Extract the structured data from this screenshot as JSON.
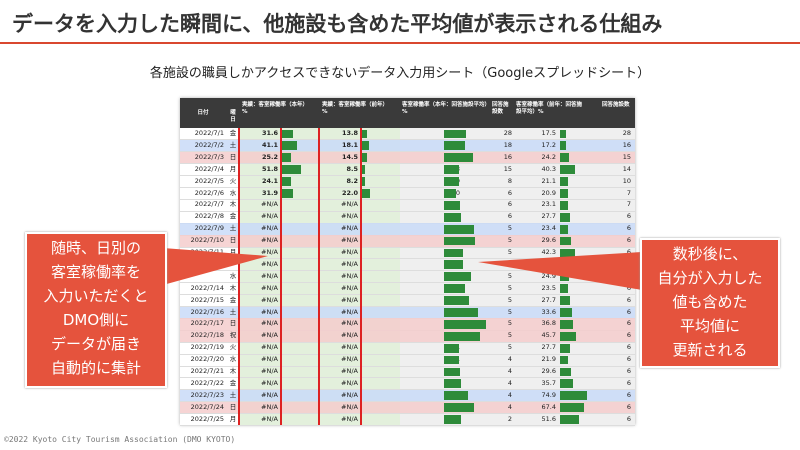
{
  "title": "データを入力した瞬間に、他施設も含めた平均値が表示される仕組み",
  "subtitle": "各施設の職員しかアクセスできないデータ入力用シート（Googleスプレッドシート）",
  "table": {
    "columns": [
      "日付",
      "曜日",
      "実績：客室稼働率（本年）%",
      "実績：客室稼働率（前年）%",
      "客室稼働率（本年：回答施設平均）%",
      "回答施設数",
      "客室稼働率（前年：回答施設平均）%",
      "回答施設数"
    ],
    "rows": [
      [
        "2022/7/1",
        "金",
        "31.6",
        "13.8",
        "49.5",
        "28",
        "17.5",
        "28"
      ],
      [
        "2022/7/2",
        "土",
        "41.1",
        "18.1",
        "48.6",
        "18",
        "17.2",
        "16"
      ],
      [
        "2022/7/3",
        "日",
        "25.2",
        "14.5",
        "65.4",
        "16",
        "24.2",
        "15"
      ],
      [
        "2022/7/4",
        "月",
        "51.8",
        "8.5",
        "33.3",
        "15",
        "40.3",
        "14"
      ],
      [
        "2022/7/5",
        "火",
        "24.1",
        "8.2",
        "33.9",
        "8",
        "21.1",
        "10"
      ],
      [
        "2022/7/6",
        "水",
        "31.9",
        "22.0",
        "27.0",
        "6",
        "20.9",
        "7"
      ],
      [
        "2022/7/7",
        "木",
        "#N/A",
        "#N/A",
        "36.4",
        "6",
        "23.1",
        "7"
      ],
      [
        "2022/7/8",
        "金",
        "#N/A",
        "#N/A",
        "37.7",
        "6",
        "27.7",
        "6"
      ],
      [
        "2022/7/9",
        "土",
        "#N/A",
        "#N/A",
        "67.1",
        "5",
        "23.4",
        "6"
      ],
      [
        "2022/7/10",
        "日",
        "#N/A",
        "#N/A",
        "69.6",
        "5",
        "29.6",
        "6"
      ],
      [
        "2022/7/11",
        "月",
        "#N/A",
        "#N/A",
        "43.4",
        "5",
        "42.3",
        "6"
      ],
      [
        null,
        null,
        "#N/A",
        "#N/A",
        "43.4",
        null,
        null,
        null
      ],
      [
        null,
        "水",
        "#N/A",
        "#N/A",
        "61.4",
        "5",
        "24.9",
        "6"
      ],
      [
        "2022/7/14",
        "木",
        "#N/A",
        "#N/A",
        "47.0",
        "5",
        "23.5",
        "6"
      ],
      [
        "2022/7/15",
        "金",
        "#N/A",
        "#N/A",
        "56.7",
        "5",
        "27.7",
        "6"
      ],
      [
        "2022/7/16",
        "土",
        "#N/A",
        "#N/A",
        "77.7",
        "5",
        "33.6",
        "6"
      ],
      [
        "2022/7/17",
        "日",
        "#N/A",
        "#N/A",
        "94.5",
        "5",
        "36.8",
        "6"
      ],
      [
        "2022/7/18",
        "祝",
        "#N/A",
        "#N/A",
        "80.9",
        "5",
        "45.7",
        "6"
      ],
      [
        "2022/7/19",
        "火",
        "#N/A",
        "#N/A",
        "35.1",
        "5",
        "27.7",
        "6"
      ],
      [
        "2022/7/20",
        "水",
        "#N/A",
        "#N/A",
        "33.1",
        "4",
        "21.9",
        "6"
      ],
      [
        "2022/7/21",
        "木",
        "#N/A",
        "#N/A",
        "35.7",
        "4",
        "29.6",
        "6"
      ],
      [
        "2022/7/22",
        "金",
        "#N/A",
        "#N/A",
        "39.4",
        "4",
        "35.7",
        "6"
      ],
      [
        "2022/7/23",
        "土",
        "#N/A",
        "#N/A",
        "55.3",
        "4",
        "74.9",
        "6"
      ],
      [
        "2022/7/24",
        "日",
        "#N/A",
        "#N/A",
        "68.0",
        "4",
        "67.4",
        "6"
      ],
      [
        "2022/7/25",
        "月",
        "#N/A",
        "#N/A",
        "39.7",
        "2",
        "51.6",
        "6"
      ]
    ]
  },
  "callout_left": [
    "随時、日別の",
    "客室稼働率を",
    "入力いただくと",
    "DMO側に",
    "データが届き",
    "自動的に集計"
  ],
  "callout_right": [
    "数秒後に、",
    "自分が入力した",
    "値も含めた",
    "平均値に",
    "更新される"
  ],
  "footer": "©2022 Kyoto City Tourism Association (DMO KYOTO)"
}
